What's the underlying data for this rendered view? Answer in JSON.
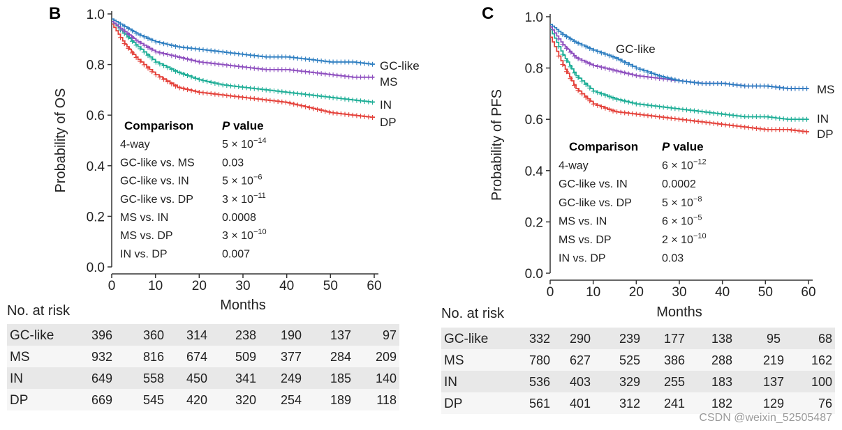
{
  "chart_data": [
    {
      "panel": "B",
      "type": "line",
      "subtype": "kaplan-meier",
      "ylabel": "Probability of OS",
      "xlabel": "Months",
      "xlim": [
        0,
        60
      ],
      "ylim": [
        0,
        1.0
      ],
      "xticks": [
        "0",
        "10",
        "20",
        "30",
        "40",
        "50",
        "60"
      ],
      "yticks": [
        "0.0",
        "0.2",
        "0.4",
        "0.6",
        "0.8",
        "1.0"
      ],
      "series": [
        {
          "name": "GC-like",
          "color": "#2f7fc1",
          "x": [
            0,
            3,
            6,
            10,
            15,
            20,
            25,
            30,
            35,
            40,
            45,
            50,
            55,
            60
          ],
          "y": [
            0.98,
            0.95,
            0.92,
            0.89,
            0.87,
            0.86,
            0.85,
            0.84,
            0.83,
            0.83,
            0.82,
            0.81,
            0.81,
            0.8
          ]
        },
        {
          "name": "MS",
          "color": "#8e4fbf",
          "x": [
            0,
            3,
            6,
            10,
            15,
            20,
            25,
            30,
            35,
            40,
            45,
            50,
            55,
            60
          ],
          "y": [
            0.97,
            0.93,
            0.89,
            0.85,
            0.83,
            0.81,
            0.8,
            0.79,
            0.78,
            0.78,
            0.77,
            0.76,
            0.75,
            0.75
          ]
        },
        {
          "name": "IN",
          "color": "#1fae97",
          "x": [
            0,
            3,
            6,
            10,
            15,
            20,
            25,
            30,
            35,
            40,
            45,
            50,
            55,
            60
          ],
          "y": [
            0.97,
            0.92,
            0.87,
            0.81,
            0.77,
            0.74,
            0.72,
            0.71,
            0.7,
            0.69,
            0.68,
            0.67,
            0.66,
            0.65
          ]
        },
        {
          "name": "DP",
          "color": "#e4413a",
          "x": [
            0,
            3,
            6,
            10,
            15,
            20,
            25,
            30,
            35,
            40,
            45,
            50,
            55,
            60
          ],
          "y": [
            0.96,
            0.88,
            0.82,
            0.76,
            0.71,
            0.69,
            0.68,
            0.67,
            0.66,
            0.65,
            0.63,
            0.61,
            0.6,
            0.59
          ]
        }
      ],
      "comparison": {
        "header": [
          "Comparison",
          "P",
          "value"
        ],
        "rows": [
          {
            "label": "4-way",
            "base": "5 × 10",
            "exp": "−14"
          },
          {
            "label": "GC-like vs. MS",
            "base": "0.03",
            "exp": ""
          },
          {
            "label": "GC-like vs. IN",
            "base": "5 × 10",
            "exp": "−6"
          },
          {
            "label": "GC-like vs. DP",
            "base": "3 × 10",
            "exp": "−11"
          },
          {
            "label": "MS vs. IN",
            "base": "0.0008",
            "exp": ""
          },
          {
            "label": "MS vs. DP",
            "base": "3 × 10",
            "exp": "−10"
          },
          {
            "label": "IN vs. DP",
            "base": "0.007",
            "exp": ""
          }
        ]
      },
      "risk_table": {
        "title": "No. at risk",
        "rows": [
          {
            "name": "GC-like",
            "values": [
              396,
              360,
              314,
              238,
              190,
              137,
              97
            ]
          },
          {
            "name": "MS",
            "values": [
              932,
              816,
              674,
              509,
              377,
              284,
              209
            ]
          },
          {
            "name": "IN",
            "values": [
              649,
              558,
              450,
              341,
              249,
              185,
              140
            ]
          },
          {
            "name": "DP",
            "values": [
              669,
              545,
              420,
              320,
              254,
              189,
              118
            ]
          }
        ]
      }
    },
    {
      "panel": "C",
      "type": "line",
      "subtype": "kaplan-meier",
      "ylabel": "Probability of PFS",
      "xlabel": "Months",
      "xlim": [
        0,
        60
      ],
      "ylim": [
        0,
        1.0
      ],
      "xticks": [
        "0",
        "10",
        "20",
        "30",
        "40",
        "50",
        "60"
      ],
      "yticks": [
        "0.0",
        "0.2",
        "0.4",
        "0.6",
        "0.8",
        "1.0"
      ],
      "series": [
        {
          "name": "GC-like",
          "color": "#2f7fc1",
          "x": [
            0,
            3,
            6,
            10,
            15,
            20,
            25,
            30,
            35,
            40,
            45,
            50,
            55,
            60
          ],
          "y": [
            0.97,
            0.93,
            0.9,
            0.87,
            0.84,
            0.8,
            0.77,
            0.75,
            0.74,
            0.74,
            0.73,
            0.73,
            0.72,
            0.72
          ]
        },
        {
          "name": "MS",
          "color": "#8e4fbf",
          "x": [
            0,
            3,
            6,
            10,
            15,
            20,
            25,
            30,
            35,
            40,
            45,
            50,
            55,
            60
          ],
          "y": [
            0.96,
            0.89,
            0.84,
            0.81,
            0.79,
            0.77,
            0.76,
            0.75,
            0.74,
            0.74,
            0.73,
            0.73,
            0.72,
            0.72
          ]
        },
        {
          "name": "IN",
          "color": "#1fae97",
          "x": [
            0,
            3,
            6,
            10,
            15,
            20,
            25,
            30,
            35,
            40,
            45,
            50,
            55,
            60
          ],
          "y": [
            0.95,
            0.85,
            0.77,
            0.71,
            0.68,
            0.66,
            0.65,
            0.64,
            0.63,
            0.62,
            0.61,
            0.61,
            0.6,
            0.6
          ]
        },
        {
          "name": "DP",
          "color": "#e4413a",
          "x": [
            0,
            3,
            6,
            10,
            15,
            20,
            25,
            30,
            35,
            40,
            45,
            50,
            55,
            60
          ],
          "y": [
            0.92,
            0.81,
            0.72,
            0.66,
            0.63,
            0.62,
            0.61,
            0.6,
            0.59,
            0.58,
            0.57,
            0.56,
            0.56,
            0.55
          ]
        }
      ],
      "comparison": {
        "header": [
          "Comparison",
          "P",
          "value"
        ],
        "rows": [
          {
            "label": "4-way",
            "base": "6 × 10",
            "exp": "−12"
          },
          {
            "label": "GC-like vs. IN",
            "base": "0.0002",
            "exp": ""
          },
          {
            "label": "GC-like vs. DP",
            "base": "5 × 10",
            "exp": "−8"
          },
          {
            "label": "MS vs. IN",
            "base": "6 × 10",
            "exp": "−5"
          },
          {
            "label": "MS vs. DP",
            "base": "2 × 10",
            "exp": "−10"
          },
          {
            "label": "IN vs. DP",
            "base": "0.03",
            "exp": ""
          }
        ]
      },
      "risk_table": {
        "title": "No. at risk",
        "rows": [
          {
            "name": "GC-like",
            "values": [
              332,
              290,
              239,
              177,
              138,
              95,
              68
            ]
          },
          {
            "name": "MS",
            "values": [
              780,
              627,
              525,
              386,
              288,
              219,
              162
            ]
          },
          {
            "name": "IN",
            "values": [
              536,
              403,
              329,
              255,
              183,
              137,
              100
            ]
          },
          {
            "name": "DP",
            "values": [
              561,
              401,
              312,
              241,
              182,
              129,
              76
            ]
          }
        ]
      }
    }
  ],
  "watermark": "CSDN @weixin_52505487"
}
